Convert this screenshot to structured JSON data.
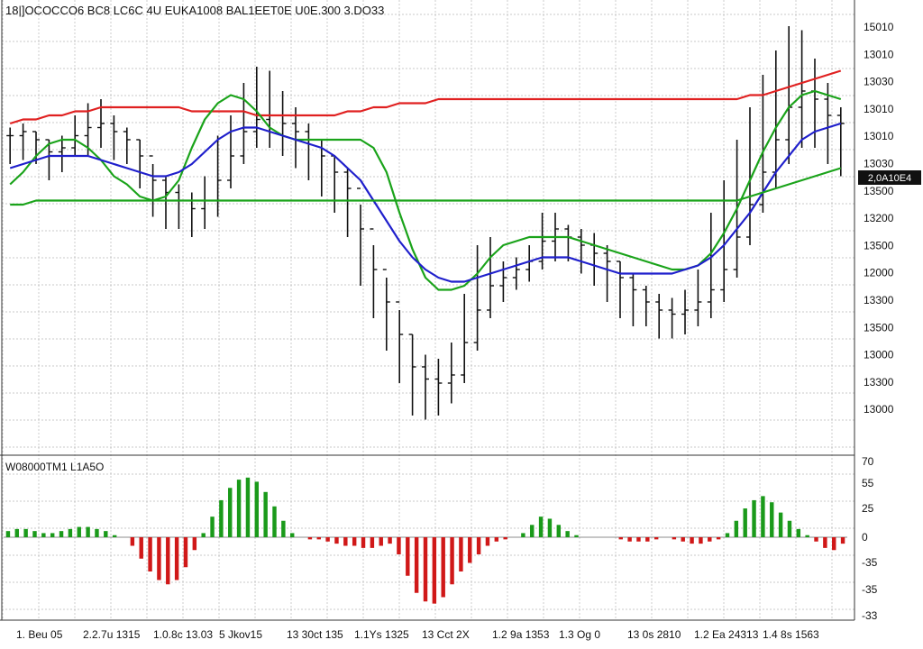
{
  "header": {
    "title": "18|]OCOCCO6 BC8 LC6C 4U EUKA1008 BAL1EET0E U0E.300 3.DO33",
    "indicator_label": "W08000TM1 L1A5O"
  },
  "current_price_label": "2,0A10E4",
  "colors": {
    "background": "#ffffff",
    "grid": "#b8b8b8",
    "candles": "#111111",
    "ma_red": "#e02020",
    "ma_green": "#1aa31a",
    "ma_blue": "#1f1fcc",
    "hist_pos": "#1a9a1a",
    "hist_neg": "#d01818"
  },
  "chart_data": [
    {
      "type": "line",
      "subtype": "candlestick-with-moving-averages",
      "grid": true,
      "price_axis_labels": [
        "15010",
        "13010",
        "13030",
        "13010",
        "13010",
        "13030",
        "13500",
        "13200",
        "13500",
        "12000",
        "13300",
        "13500",
        "13000",
        "13300",
        "13000"
      ],
      "time_axis_labels": [
        "1. Beu 05",
        "2.2.7u 1315",
        "1.0.8c 13.03",
        "5 Jkov15",
        "13 30ct 135",
        "1.1Ys 1325",
        "13 Cct 2X",
        "1.2 9a 1353",
        "1.3 Og 0",
        "13 0s 2810",
        "1.2 Ea 24313",
        "1.4 8s 1563"
      ],
      "ylim": [
        0,
        100
      ],
      "close": [
        71,
        72,
        70,
        67,
        68,
        71,
        73,
        74,
        72,
        70,
        66,
        60,
        57,
        55,
        53,
        55,
        60,
        66,
        72,
        75,
        76,
        74,
        72,
        70,
        66,
        62,
        58,
        48,
        38,
        30,
        22,
        14,
        11,
        10,
        12,
        20,
        28,
        34,
        36,
        38,
        40,
        45,
        48,
        46,
        44,
        42,
        40,
        36,
        33,
        30,
        28,
        27,
        28,
        30,
        33,
        38,
        46,
        54,
        62,
        70,
        78,
        82,
        80,
        76,
        74
      ],
      "high": [
        73,
        74,
        72,
        70,
        71,
        76,
        79,
        80,
        76,
        73,
        70,
        64,
        61,
        59,
        57,
        61,
        71,
        76,
        84,
        88,
        87,
        82,
        78,
        74,
        70,
        66,
        63,
        54,
        44,
        36,
        28,
        22,
        17,
        16,
        20,
        32,
        44,
        46,
        40,
        41,
        44,
        52,
        52,
        49,
        48,
        47,
        44,
        40,
        37,
        34,
        32,
        31,
        33,
        38,
        52,
        60,
        70,
        78,
        86,
        92,
        98,
        97,
        90,
        84,
        78
      ],
      "low": [
        64,
        65,
        64,
        60,
        62,
        66,
        66,
        68,
        65,
        64,
        58,
        51,
        48,
        48,
        46,
        48,
        51,
        58,
        64,
        68,
        68,
        66,
        63,
        60,
        56,
        52,
        46,
        34,
        26,
        18,
        10,
        2,
        1,
        2,
        5,
        10,
        18,
        26,
        30,
        33,
        35,
        38,
        40,
        40,
        37,
        34,
        30,
        26,
        24,
        24,
        21,
        21,
        22,
        24,
        26,
        30,
        36,
        44,
        52,
        58,
        64,
        68,
        68,
        64,
        61
      ],
      "series": [
        {
          "name": "",
          "color": "red",
          "values": [
            74,
            75,
            75,
            76,
            76,
            77,
            77,
            78,
            78,
            78,
            78,
            78,
            78,
            78,
            77,
            77,
            77,
            77,
            77,
            76,
            76,
            76,
            76,
            76,
            76,
            76,
            77,
            77,
            78,
            78,
            79,
            79,
            79,
            80,
            80,
            80,
            80,
            80,
            80,
            80,
            80,
            80,
            80,
            80,
            80,
            80,
            80,
            80,
            80,
            80,
            80,
            80,
            80,
            80,
            80,
            80,
            80,
            81,
            81,
            82,
            83,
            84,
            85,
            86,
            87
          ]
        },
        {
          "name": "",
          "color": "green",
          "values": [
            59,
            62,
            66,
            69,
            70,
            70,
            68,
            65,
            61,
            59,
            56,
            55,
            56,
            60,
            68,
            75,
            79,
            81,
            80,
            77,
            73,
            71,
            70,
            70,
            70,
            70,
            70,
            70,
            68,
            62,
            52,
            43,
            36,
            33,
            33,
            34,
            37,
            41,
            44,
            45,
            46,
            46,
            46,
            46,
            45,
            44,
            43,
            42,
            41,
            40,
            39,
            38,
            38,
            39,
            42,
            47,
            53,
            60,
            67,
            73,
            78,
            81,
            82,
            81,
            80
          ]
        },
        {
          "name": "",
          "color": "blue",
          "values": [
            63,
            64,
            65,
            66,
            66,
            66,
            66,
            65,
            64,
            63,
            62,
            61,
            61,
            62,
            64,
            67,
            70,
            72,
            73,
            73,
            72,
            71,
            70,
            69,
            68,
            66,
            63,
            60,
            55,
            50,
            45,
            41,
            38,
            36,
            35,
            35,
            36,
            37,
            38,
            39,
            40,
            41,
            41,
            41,
            40,
            39,
            38,
            37,
            37,
            37,
            37,
            37,
            38,
            39,
            41,
            44,
            48,
            52,
            57,
            62,
            66,
            70,
            72,
            73,
            74
          ]
        },
        {
          "name": "",
          "color": "green",
          "values": [
            54,
            54,
            55,
            55,
            55,
            55,
            55,
            55,
            55,
            55,
            55,
            55,
            55,
            55,
            55,
            55,
            55,
            55,
            55,
            55,
            55,
            55,
            55,
            55,
            55,
            55,
            55,
            55,
            55,
            55,
            55,
            55,
            55,
            55,
            55,
            55,
            55,
            55,
            55,
            55,
            55,
            55,
            55,
            55,
            55,
            55,
            55,
            55,
            55,
            55,
            55,
            55,
            55,
            55,
            55,
            55,
            55,
            56,
            57,
            58,
            59,
            60,
            61,
            62,
            63
          ]
        }
      ]
    },
    {
      "type": "bar",
      "subtype": "oscillator-histogram",
      "value_axis_labels": [
        "70",
        "55",
        "25",
        "0",
        "-35",
        "-35",
        "-33"
      ],
      "values": [
        3,
        4,
        4,
        3,
        2,
        2,
        3,
        4,
        5,
        5,
        4,
        3,
        1,
        0,
        -4,
        -10,
        -16,
        -20,
        -22,
        -20,
        -14,
        -6,
        2,
        10,
        18,
        24,
        28,
        29,
        27,
        22,
        15,
        8,
        2,
        0,
        -1,
        -1,
        -2,
        -3,
        -4,
        -4,
        -5,
        -5,
        -4,
        -3,
        -8,
        -18,
        -26,
        -30,
        -31,
        -28,
        -22,
        -16,
        -12,
        -8,
        -4,
        -2,
        -1,
        0,
        2,
        6,
        10,
        9,
        6,
        3,
        1,
        0,
        0,
        0,
        0,
        -1,
        -2,
        -2,
        -2,
        -1,
        0,
        -1,
        -2,
        -3,
        -3,
        -2,
        -1,
        2,
        8,
        14,
        18,
        20,
        17,
        12,
        8,
        4,
        1,
        -2,
        -5,
        -6,
        -3
      ]
    }
  ]
}
